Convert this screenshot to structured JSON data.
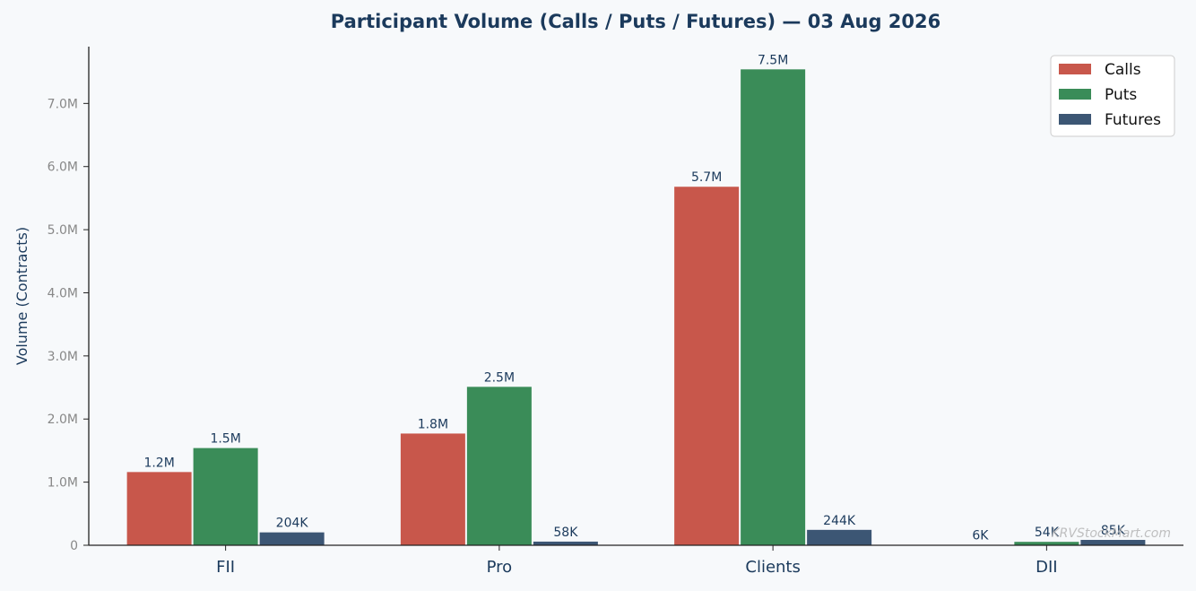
{
  "chart_data": {
    "type": "bar",
    "title": "Participant Volume (Calls / Puts / Futures) — 03 Aug 2026",
    "ylabel": "Volume (Contracts)",
    "xlabel": "",
    "categories": [
      "FII",
      "Pro",
      "Clients",
      "DII"
    ],
    "series": [
      {
        "name": "Calls",
        "color": "#c8574b",
        "values": [
          1160000,
          1770000,
          5680000,
          6000
        ],
        "labels": [
          "1.2M",
          "1.8M",
          "5.7M",
          "6K"
        ]
      },
      {
        "name": "Puts",
        "color": "#3a8c58",
        "values": [
          1540000,
          2510000,
          7540000,
          54000
        ],
        "labels": [
          "1.5M",
          "2.5M",
          "7.5M",
          "54K"
        ]
      },
      {
        "name": "Futures",
        "color": "#3c5674",
        "values": [
          204000,
          58000,
          244000,
          85000
        ],
        "labels": [
          "204K",
          "58K",
          "244K",
          "85K"
        ]
      }
    ],
    "ylim": [
      0,
      7900000
    ],
    "yticks": [
      0,
      1000000,
      2000000,
      3000000,
      4000000,
      5000000,
      6000000,
      7000000
    ],
    "ytick_labels": [
      "0",
      "1.0M",
      "2.0M",
      "3.0M",
      "4.0M",
      "5.0M",
      "6.0M",
      "7.0M"
    ],
    "legend_position": "top-right",
    "grid": false,
    "watermark": "KRVStockMart.com",
    "colors": {
      "title": "#1b3a5c",
      "axis": "#222222",
      "tick_label": "#888888",
      "data_label": "#1b3a5c",
      "background": "#f7f9fb"
    }
  }
}
